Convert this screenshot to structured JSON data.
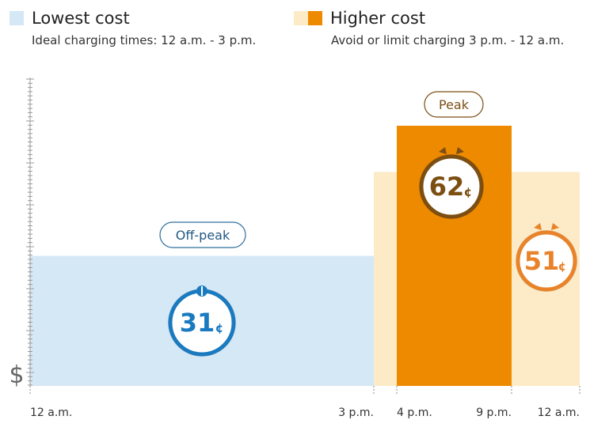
{
  "legend": {
    "lowest": {
      "title": "Lowest cost",
      "subtitle": "Ideal charging times: 12 a.m. - 3 p.m.",
      "color": "#d5e8f6"
    },
    "higher": {
      "title": "Higher cost",
      "subtitle": "Avoid or limit charging 3 p.m. - 12 a.m.",
      "color_light": "#fdebc8",
      "color_dark": "#ee8a00"
    }
  },
  "chart_data": {
    "type": "bar",
    "ylabel": "$",
    "x_ticks": [
      "12 a.m.",
      "3 p.m.",
      "4 p.m.",
      "9 p.m.",
      "12 a.m."
    ],
    "segments": [
      {
        "start": "12 a.m.",
        "end": "3 p.m.",
        "value": 31,
        "label": "31",
        "unit": "¢",
        "period": "Off-peak",
        "fill": "#d5e8f6",
        "badge_color": "#1a7abf"
      },
      {
        "start": "3 p.m.",
        "end": "4 p.m.",
        "value": 51,
        "fill": "#fdebc8"
      },
      {
        "start": "4 p.m.",
        "end": "9 p.m.",
        "value": 62,
        "label": "62",
        "unit": "¢",
        "period": "Peak",
        "fill": "#ee8a00",
        "badge_color": "#7c4e12"
      },
      {
        "start": "9 p.m.",
        "end": "12 a.m.",
        "value": 51,
        "label": "51",
        "unit": "¢",
        "fill": "#fdebc8",
        "badge_color": "#e8832a"
      }
    ],
    "ylim": [
      0,
      75
    ]
  }
}
